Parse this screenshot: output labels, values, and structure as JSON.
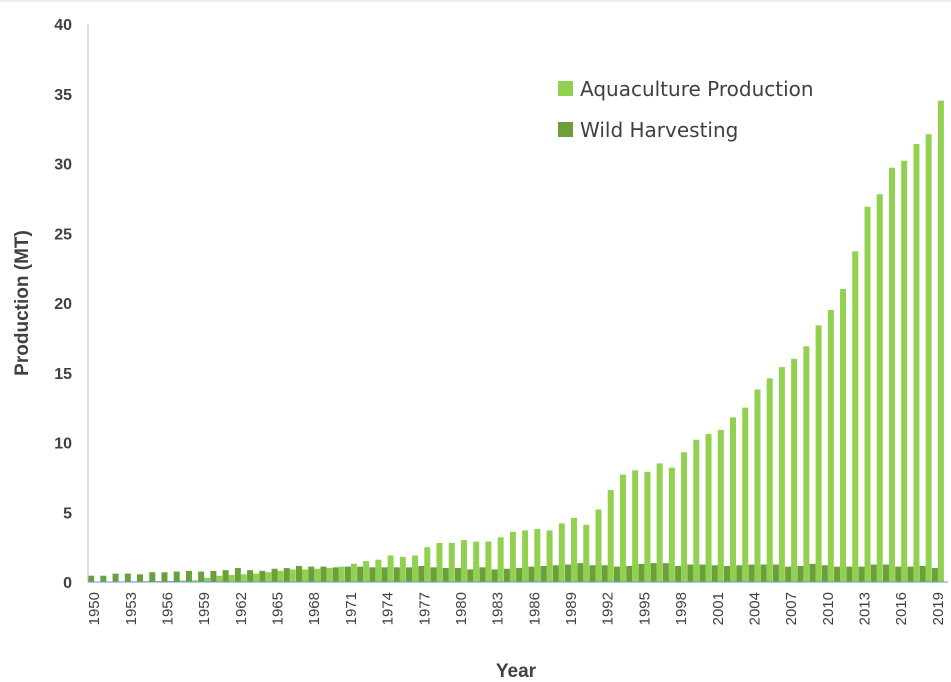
{
  "chart_data": {
    "type": "bar",
    "title": "",
    "xlabel": "Year",
    "ylabel": "Production (MT)",
    "ylim": [
      0,
      40
    ],
    "yticks": [
      0,
      5,
      10,
      15,
      20,
      25,
      30,
      35,
      40
    ],
    "grid": false,
    "legend_position": "top-right",
    "categories": [
      1950,
      1951,
      1952,
      1953,
      1954,
      1955,
      1956,
      1957,
      1958,
      1959,
      1960,
      1961,
      1962,
      1963,
      1964,
      1965,
      1966,
      1967,
      1968,
      1969,
      1970,
      1971,
      1972,
      1973,
      1974,
      1975,
      1976,
      1977,
      1978,
      1979,
      1980,
      1981,
      1982,
      1983,
      1984,
      1985,
      1986,
      1987,
      1988,
      1989,
      1990,
      1991,
      1992,
      1993,
      1994,
      1995,
      1996,
      1997,
      1998,
      1999,
      2000,
      2001,
      2002,
      2003,
      2004,
      2005,
      2006,
      2007,
      2008,
      2009,
      2010,
      2011,
      2012,
      2013,
      2014,
      2015,
      2016,
      2017,
      2018,
      2019
    ],
    "xtick_labels": [
      "1950",
      "1953",
      "1956",
      "1959",
      "1962",
      "1965",
      "1968",
      "1971",
      "1974",
      "1977",
      "1980",
      "1983",
      "1986",
      "1989",
      "1992",
      "1995",
      "1998",
      "2001",
      "2004",
      "2007",
      "2010",
      "2013",
      "2016",
      "2019"
    ],
    "series": [
      {
        "name": "Aquaculture Production",
        "color": "#92d050",
        "values": [
          0.02,
          0.03,
          0.04,
          0.05,
          0.06,
          0.07,
          0.08,
          0.1,
          0.12,
          0.3,
          0.45,
          0.5,
          0.55,
          0.6,
          0.7,
          0.8,
          0.9,
          0.9,
          0.95,
          1.0,
          1.1,
          1.3,
          1.5,
          1.6,
          1.9,
          1.8,
          1.9,
          2.5,
          2.8,
          2.8,
          3.0,
          2.9,
          2.9,
          3.2,
          3.6,
          3.7,
          3.8,
          3.7,
          4.2,
          4.6,
          4.1,
          5.2,
          6.6,
          7.7,
          8.0,
          7.9,
          8.5,
          8.2,
          9.3,
          10.2,
          10.6,
          10.9,
          11.8,
          12.5,
          13.8,
          14.6,
          15.4,
          16.0,
          16.9,
          18.4,
          19.5,
          21.0,
          23.7,
          26.9,
          27.8,
          29.7,
          30.2,
          31.4,
          32.1,
          34.5
        ]
      },
      {
        "name": "Wild Harvesting",
        "color": "#6a9f3a",
        "values": [
          0.45,
          0.45,
          0.6,
          0.6,
          0.55,
          0.7,
          0.7,
          0.75,
          0.8,
          0.75,
          0.8,
          0.85,
          1.0,
          0.85,
          0.8,
          0.95,
          1.0,
          1.15,
          1.1,
          1.1,
          1.05,
          1.1,
          1.1,
          1.05,
          1.05,
          1.05,
          1.05,
          1.15,
          1.05,
          1.0,
          1.0,
          0.9,
          1.05,
          0.9,
          0.95,
          1.0,
          1.1,
          1.15,
          1.2,
          1.25,
          1.35,
          1.2,
          1.2,
          1.1,
          1.15,
          1.3,
          1.35,
          1.35,
          1.15,
          1.25,
          1.25,
          1.2,
          1.15,
          1.2,
          1.25,
          1.25,
          1.25,
          1.1,
          1.15,
          1.3,
          1.2,
          1.1,
          1.1,
          1.1,
          1.25,
          1.25,
          1.1,
          1.1,
          1.15,
          1.0
        ]
      }
    ]
  }
}
